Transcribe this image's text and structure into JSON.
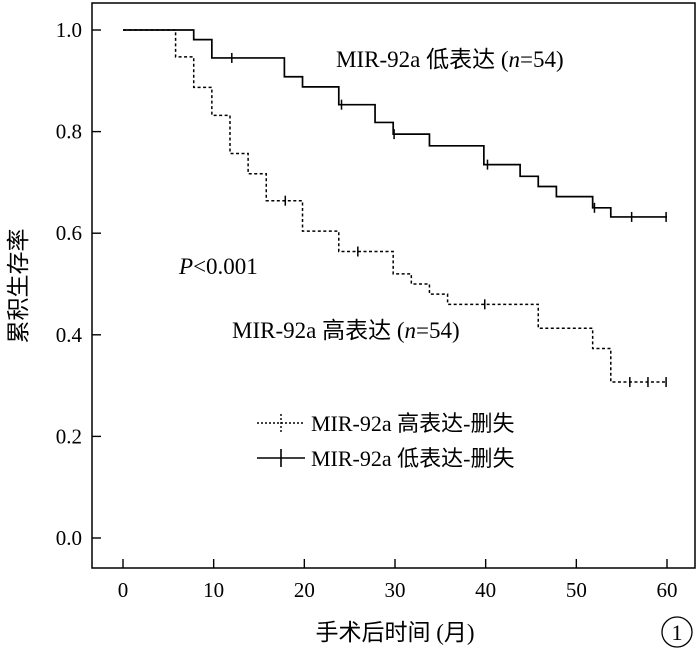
{
  "chart_data": {
    "type": "line",
    "xlabel": "手术后时间 (月)",
    "ylabel": "累积生存率",
    "xlim": [
      0,
      60
    ],
    "ylim": [
      0,
      1
    ],
    "xticks": [
      "0",
      "10",
      "20",
      "30",
      "40",
      "50",
      "60"
    ],
    "yticks": [
      "0.0",
      "0.2",
      "0.4",
      "0.6",
      "0.8",
      "1.0"
    ],
    "grid": false,
    "legend_position": "bottom-left",
    "panel_marker": "1",
    "annotations": {
      "p_value_italic": "P",
      "p_value_rest": "<0.001",
      "low_group_prefix": "MIR-92a 低表达 (",
      "high_group_prefix": "MIR-92a 高表达 (",
      "n_italic": "n",
      "n_value": "=54)"
    },
    "series": [
      {
        "name": "MIR-92a 高表达-删失",
        "label": "MIR-92a 高表达 (n=54)",
        "style": "dotted",
        "color": "#000000",
        "steps": [
          [
            0,
            1.0
          ],
          [
            5.8,
            0.947
          ],
          [
            7.8,
            0.887
          ],
          [
            9.8,
            0.832
          ],
          [
            11.8,
            0.757
          ],
          [
            13.8,
            0.717
          ],
          [
            15.8,
            0.664
          ],
          [
            19.8,
            0.604
          ],
          [
            23.8,
            0.564
          ],
          [
            29.8,
            0.52
          ],
          [
            31.8,
            0.5
          ],
          [
            33.8,
            0.48
          ],
          [
            35.8,
            0.46
          ],
          [
            45.8,
            0.413
          ],
          [
            51.8,
            0.373
          ],
          [
            53.8,
            0.307
          ],
          [
            60,
            0.307
          ]
        ],
        "censored": [
          [
            17.9,
            0.664
          ],
          [
            25.9,
            0.564
          ],
          [
            39.9,
            0.46
          ],
          [
            55.9,
            0.307
          ],
          [
            57.9,
            0.307
          ],
          [
            59.9,
            0.307
          ]
        ]
      },
      {
        "name": "MIR-92a 低表达-删失",
        "label": "MIR-92a 低表达 (n=54)",
        "style": "solid",
        "color": "#000000",
        "steps": [
          [
            0,
            1.0
          ],
          [
            7.8,
            0.981
          ],
          [
            9.8,
            0.945
          ],
          [
            17.8,
            0.908
          ],
          [
            19.8,
            0.888
          ],
          [
            23.8,
            0.853
          ],
          [
            27.8,
            0.818
          ],
          [
            29.8,
            0.795
          ],
          [
            33.8,
            0.772
          ],
          [
            39.8,
            0.735
          ],
          [
            43.8,
            0.712
          ],
          [
            45.8,
            0.692
          ],
          [
            47.8,
            0.672
          ],
          [
            51.8,
            0.65
          ],
          [
            53.8,
            0.632
          ],
          [
            60,
            0.632
          ]
        ],
        "censored": [
          [
            12,
            0.945
          ],
          [
            24.1,
            0.853
          ],
          [
            29.9,
            0.795
          ],
          [
            40.2,
            0.735
          ],
          [
            52,
            0.65
          ],
          [
            56.1,
            0.632
          ],
          [
            59.9,
            0.632
          ]
        ]
      }
    ]
  }
}
